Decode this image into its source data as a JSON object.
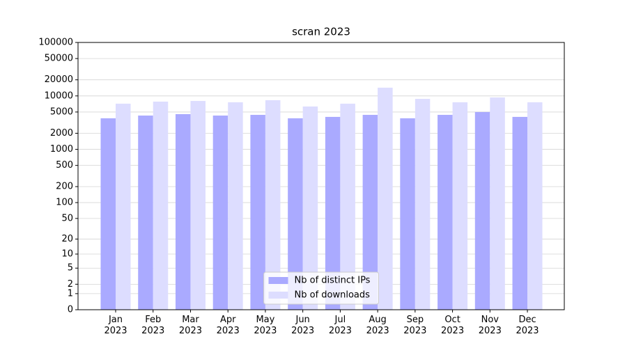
{
  "chart_data": {
    "type": "bar",
    "title": "scran 2023",
    "categories": [
      "Jan\n2023",
      "Feb\n2023",
      "Mar\n2023",
      "Apr\n2023",
      "May\n2023",
      "Jun\n2023",
      "Jul\n2023",
      "Aug\n2023",
      "Sep\n2023",
      "Oct\n2023",
      "Nov\n2023",
      "Dec\n2023"
    ],
    "series": [
      {
        "name": "Nb of distinct IPs",
        "color": "#aaaaff",
        "values": [
          3810,
          4290,
          4560,
          4290,
          4420,
          3810,
          4050,
          4420,
          3810,
          4420,
          4990,
          4050
        ]
      },
      {
        "name": "Nb of downloads",
        "color": "#ddddff",
        "values": [
          7150,
          7820,
          8050,
          7590,
          8300,
          6340,
          7150,
          14250,
          8810,
          7590,
          9350,
          7590
        ]
      }
    ],
    "yscale": "log1p",
    "ylim": [
      0,
      100000
    ],
    "yticks": [
      0,
      1,
      2,
      5,
      10,
      20,
      50,
      100,
      200,
      500,
      1000,
      2000,
      5000,
      10000,
      20000,
      50000,
      100000
    ],
    "grid": true,
    "legend": "lower center"
  }
}
